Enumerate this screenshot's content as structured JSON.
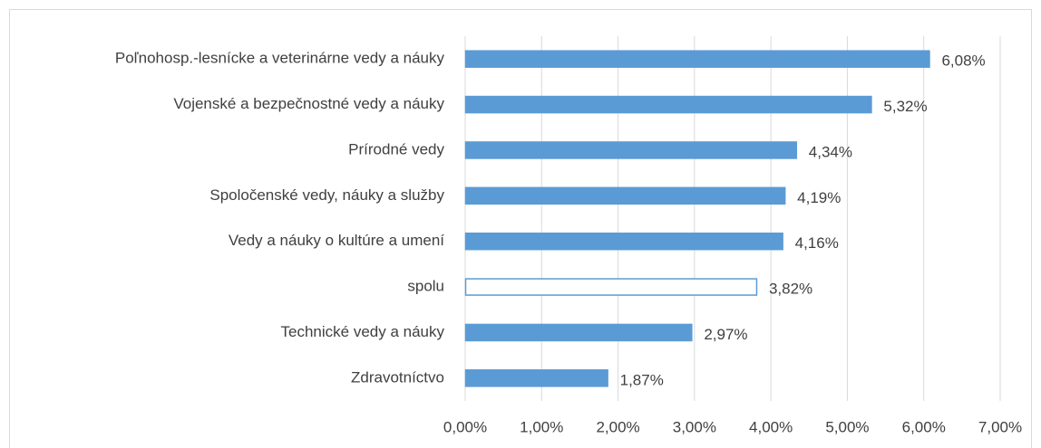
{
  "chart_data": {
    "type": "barh",
    "categories": [
      "Poľnohosp.-lesnícke a veterinárne vedy a náuky",
      "Vojenské a bezpečnostné vedy a náuky",
      "Prírodné vedy",
      "Spoločenské vedy, náuky a služby",
      "Vedy a náuky o kultúre a umení",
      "spolu",
      "Technické vedy a náuky",
      "Zdravotníctvo"
    ],
    "values": [
      6.08,
      5.32,
      4.34,
      4.19,
      4.16,
      3.82,
      2.97,
      1.87
    ],
    "value_labels": [
      "6,08%",
      "5,32%",
      "4,34%",
      "4,19%",
      "4,16%",
      "3,82%",
      "2,97%",
      "1,87%"
    ],
    "colors": [
      "#5b9bd5",
      "#5b9bd5",
      "#5b9bd5",
      "#5b9bd5",
      "#5b9bd5",
      "#ffffff",
      "#5b9bd5",
      "#5b9bd5"
    ],
    "edgecolor": "#5b9bd5",
    "xlim": [
      0,
      7
    ],
    "xticks": [
      {
        "value": 0,
        "label": "0,00%"
      },
      {
        "value": 1,
        "label": "1,00%"
      },
      {
        "value": 2,
        "label": "2,00%"
      },
      {
        "value": 3,
        "label": "3,00%"
      },
      {
        "value": 4,
        "label": "4,00%"
      },
      {
        "value": 5,
        "label": "5,00%"
      },
      {
        "value": 6,
        "label": "6,00%"
      },
      {
        "value": 7,
        "label": "7,00%"
      }
    ],
    "grid": true
  }
}
